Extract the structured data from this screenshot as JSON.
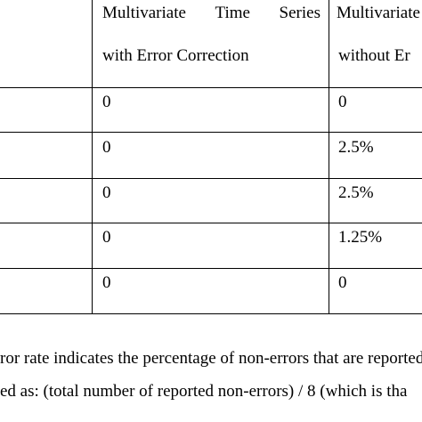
{
  "table": {
    "header": {
      "col1_line1_words": [
        "Multivariate",
        "Time",
        "Series"
      ],
      "col1_line2": "with Error Correction",
      "col2_line1": "Multivariate",
      "col2_line2": "without Er"
    },
    "rows": [
      {
        "col1": "0",
        "col2": "0"
      },
      {
        "col1": "0",
        "col2": "2.5%"
      },
      {
        "col1": "0",
        "col2": "2.5%"
      },
      {
        "col1": "0",
        "col2": "1.25%"
      },
      {
        "col1": "0",
        "col2": "0"
      }
    ]
  },
  "note": {
    "line1": "ror rate indicates the percentage of non-errors that are reported",
    "line2": "ed as: (total number of reported non-errors) / 8 (which is tha"
  }
}
